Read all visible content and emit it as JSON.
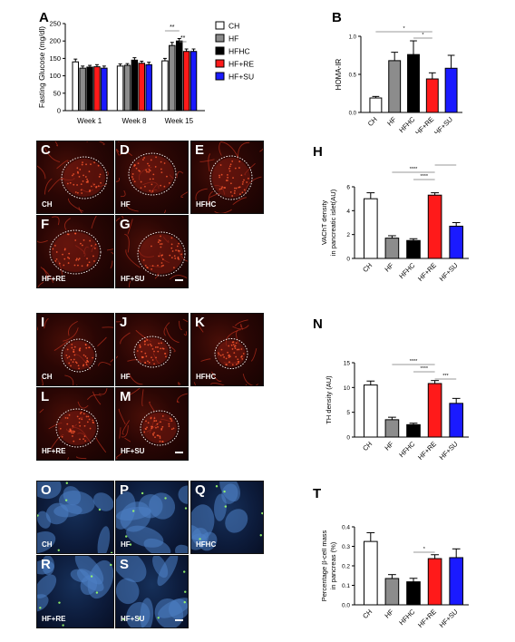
{
  "panel_letters": {
    "A": "A",
    "B": "B",
    "H": "H",
    "N": "N",
    "T": "T"
  },
  "micrographs": [
    {
      "id": "C",
      "letter": "C",
      "caption": "CH",
      "stain": "red",
      "islet": "yes"
    },
    {
      "id": "D",
      "letter": "D",
      "caption": "HF",
      "stain": "red",
      "islet": "yes"
    },
    {
      "id": "E",
      "letter": "E",
      "caption": "HFHC",
      "stain": "red",
      "islet": "yes"
    },
    {
      "id": "F",
      "letter": "F",
      "caption": "HF+RE",
      "stain": "red",
      "islet": "yes"
    },
    {
      "id": "G",
      "letter": "G",
      "caption": "HF+SU",
      "stain": "red",
      "islet": "yes"
    },
    {
      "id": "I",
      "letter": "I",
      "caption": "CH",
      "stain": "red",
      "islet": "yes"
    },
    {
      "id": "J",
      "letter": "J",
      "caption": "HF",
      "stain": "red",
      "islet": "yes"
    },
    {
      "id": "K",
      "letter": "K",
      "caption": "HFHC",
      "stain": "red",
      "islet": "yes"
    },
    {
      "id": "L",
      "letter": "L",
      "caption": "HF+RE",
      "stain": "red",
      "islet": "yes"
    },
    {
      "id": "M",
      "letter": "M",
      "caption": "HF+SU",
      "stain": "red",
      "islet": "yes"
    },
    {
      "id": "O",
      "letter": "O",
      "caption": "CH",
      "stain": "blue",
      "islet": "no"
    },
    {
      "id": "P",
      "letter": "P",
      "caption": "HF",
      "stain": "blue",
      "islet": "no"
    },
    {
      "id": "Q",
      "letter": "Q",
      "caption": "HFHC",
      "stain": "blue",
      "islet": "no"
    },
    {
      "id": "R",
      "letter": "R",
      "caption": "HF+RE",
      "stain": "blue",
      "islet": "no"
    },
    {
      "id": "S",
      "letter": "S",
      "caption": "HF+SU",
      "stain": "blue",
      "islet": "no"
    }
  ],
  "colors": {
    "CH": "#ffffff",
    "HF": "#8c8c8c",
    "HFHC": "#000000",
    "HF+RE": "#ff1a1a",
    "HF+SU": "#1a1aff",
    "outline": "#000000"
  },
  "legend": [
    "CH",
    "HF",
    "HFHC",
    "HF+RE",
    "HF+SU"
  ],
  "chart_data": [
    {
      "id": "A",
      "type": "bar",
      "ylabel": "Fasting Glucose (mg/dl)",
      "ylim": [
        0,
        250
      ],
      "yticks": [
        "0",
        "50",
        "100",
        "150",
        "200",
        "250"
      ],
      "categories": [
        "Week 1",
        "Week 8",
        "Week 15"
      ],
      "series": [
        {
          "name": "CH",
          "values": [
            140,
            128,
            143
          ],
          "errors": [
            8,
            6,
            7
          ]
        },
        {
          "name": "HF",
          "values": [
            122,
            130,
            187
          ],
          "errors": [
            6,
            5,
            9
          ]
        },
        {
          "name": "HFHC",
          "values": [
            125,
            145,
            200
          ],
          "errors": [
            5,
            7,
            7
          ]
        },
        {
          "name": "HF+RE",
          "values": [
            126,
            136,
            170
          ],
          "errors": [
            6,
            6,
            7
          ]
        },
        {
          "name": "HF+SU",
          "values": [
            122,
            132,
            170
          ],
          "errors": [
            6,
            7,
            7
          ]
        }
      ],
      "significance": [
        {
          "label": "**",
          "from": 0,
          "to": 2,
          "week": 2,
          "level": 1
        },
        {
          "label": "**",
          "from": 2,
          "to": 3,
          "week": 2,
          "level": 0
        }
      ],
      "legend_position": "right"
    },
    {
      "id": "B",
      "type": "bar",
      "ylabel": "HOMA-IR",
      "ylim": [
        0,
        1.0
      ],
      "yticks": [
        "0.0",
        "0.5",
        "1.0"
      ],
      "categories": [
        "CH",
        "HF",
        "HFHC",
        "HF+RE",
        "HF+SU"
      ],
      "values": [
        0.19,
        0.68,
        0.76,
        0.44,
        0.58
      ],
      "errors": [
        0.02,
        0.11,
        0.18,
        0.08,
        0.17
      ],
      "significance": [
        {
          "label": "*",
          "from": 0,
          "to": 3,
          "level": 1
        },
        {
          "label": "*",
          "from": 2,
          "to": 3,
          "level": 0
        }
      ]
    },
    {
      "id": "H",
      "type": "bar",
      "ylabel": [
        "VAChT density",
        "in pancreatic islet(AU)"
      ],
      "ylim": [
        0,
        6
      ],
      "yticks": [
        "0",
        "2",
        "4",
        "6"
      ],
      "categories": [
        "CH",
        "HF",
        "HFHC",
        "HF+RE",
        "HF+SU"
      ],
      "values": [
        5.0,
        1.7,
        1.5,
        5.3,
        2.7
      ],
      "errors": [
        0.5,
        0.2,
        0.15,
        0.2,
        0.3
      ],
      "significance": [
        {
          "label": "****",
          "from": 1,
          "to": 3,
          "level": 2
        },
        {
          "label": "****",
          "from": 2,
          "to": 3,
          "level": 1
        },
        {
          "label": "****",
          "from": 3,
          "to": 4,
          "level": 3
        }
      ]
    },
    {
      "id": "N",
      "type": "bar",
      "ylabel": "TH density (AU)",
      "ylim": [
        0,
        15
      ],
      "yticks": [
        "0",
        "5",
        "10",
        "15"
      ],
      "categories": [
        "CH",
        "HF",
        "HFHC",
        "HF+RE",
        "HF+SU"
      ],
      "values": [
        10.5,
        3.5,
        2.5,
        10.8,
        6.8
      ],
      "errors": [
        0.8,
        0.5,
        0.3,
        0.6,
        1.0
      ],
      "significance": [
        {
          "label": "****",
          "from": 1,
          "to": 3,
          "level": 2
        },
        {
          "label": "****",
          "from": 2,
          "to": 3,
          "level": 1
        },
        {
          "label": "***",
          "from": 3,
          "to": 4,
          "level": 0
        }
      ]
    },
    {
      "id": "T",
      "type": "bar",
      "ylabel": [
        "Percentage β-cell mass",
        "in pancreas (%)"
      ],
      "ylim": [
        0,
        0.4
      ],
      "yticks": [
        "0.0",
        "0.1",
        "0.2",
        "0.3",
        "0.4"
      ],
      "categories": [
        "CH",
        "HF",
        "HFHC",
        "HF+RE",
        "HF+SU"
      ],
      "values": [
        0.325,
        0.135,
        0.118,
        0.237,
        0.242
      ],
      "errors": [
        0.045,
        0.02,
        0.018,
        0.02,
        0.045
      ],
      "significance": [
        {
          "label": "*",
          "from": 2,
          "to": 3,
          "level": 0
        }
      ]
    }
  ]
}
